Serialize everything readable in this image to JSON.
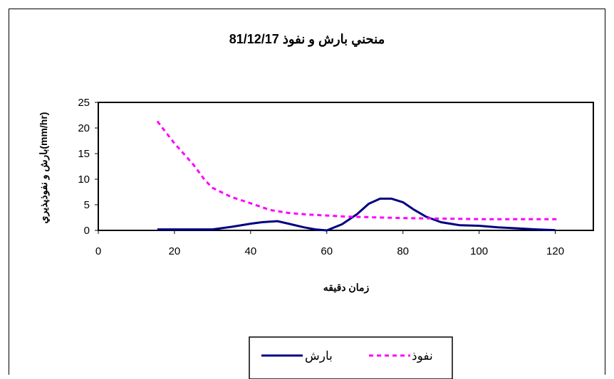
{
  "chart_data": {
    "type": "line",
    "title": "منحني بارش و نفوذ 81/12/17",
    "xlabel": "زمان دقيقه",
    "ylabel": "بارش و نفوذپذيري(mm/hr)",
    "xlim": [
      0,
      130
    ],
    "ylim": [
      0,
      25
    ],
    "xticks": [
      0,
      20,
      40,
      60,
      80,
      100,
      120
    ],
    "yticks": [
      0,
      5,
      10,
      15,
      20,
      25
    ],
    "grid": false,
    "legend_position": "bottom",
    "series": [
      {
        "name": "بارش",
        "color": "#000080",
        "style": "solid",
        "points": [
          [
            15.5,
            0.2
          ],
          [
            20,
            0.2
          ],
          [
            25,
            0.2
          ],
          [
            30,
            0.2
          ],
          [
            35,
            0.7
          ],
          [
            40,
            1.3
          ],
          [
            43,
            1.6
          ],
          [
            47,
            1.8
          ],
          [
            50,
            1.3
          ],
          [
            54,
            0.6
          ],
          [
            57,
            0.2
          ],
          [
            60,
            0.0
          ],
          [
            64,
            1.2
          ],
          [
            68,
            3.2
          ],
          [
            71,
            5.2
          ],
          [
            74,
            6.2
          ],
          [
            77,
            6.2
          ],
          [
            80,
            5.5
          ],
          [
            83,
            4.0
          ],
          [
            86,
            2.7
          ],
          [
            90,
            1.6
          ],
          [
            95,
            1.0
          ],
          [
            100,
            0.9
          ],
          [
            105,
            0.6
          ],
          [
            110,
            0.4
          ],
          [
            115,
            0.2
          ],
          [
            120,
            0.05
          ]
        ]
      },
      {
        "name": "نفوذ",
        "color": "#ff00ff",
        "style": "dashed",
        "points": [
          [
            15.5,
            21.3
          ],
          [
            20,
            17.0
          ],
          [
            25,
            12.8
          ],
          [
            28,
            9.8
          ],
          [
            30,
            8.3
          ],
          [
            35,
            6.5
          ],
          [
            40,
            5.3
          ],
          [
            45,
            4.0
          ],
          [
            50,
            3.4
          ],
          [
            55,
            3.1
          ],
          [
            60,
            2.9
          ],
          [
            65,
            2.7
          ],
          [
            70,
            2.6
          ],
          [
            75,
            2.5
          ],
          [
            80,
            2.4
          ],
          [
            85,
            2.35
          ],
          [
            90,
            2.3
          ],
          [
            95,
            2.25
          ],
          [
            100,
            2.2
          ],
          [
            105,
            2.2
          ],
          [
            110,
            2.2
          ],
          [
            115,
            2.2
          ],
          [
            121,
            2.2
          ]
        ]
      }
    ]
  }
}
